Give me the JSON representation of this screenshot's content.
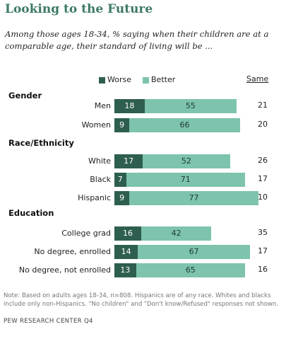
{
  "title": "Looking to the Future",
  "subtitle": "Among those ages 18-34, % saying when their children are at a comparable age, their standard of living will be ...",
  "legend": {
    "worse": "Worse",
    "better": "Better",
    "same_header": "Same"
  },
  "colors": {
    "worse": "#2e5e4f",
    "better": "#7dc3ad",
    "title": "#3d7a64"
  },
  "chart_data": {
    "type": "bar",
    "stacked": true,
    "orientation": "horizontal",
    "groups": [
      {
        "heading": "Gender",
        "rows": [
          {
            "label": "Men",
            "worse": 18,
            "better": 55,
            "same": 21
          },
          {
            "label": "Women",
            "worse": 9,
            "better": 66,
            "same": 20
          }
        ]
      },
      {
        "heading": "Race/Ethnicity",
        "rows": [
          {
            "label": "White",
            "worse": 17,
            "better": 52,
            "same": 26
          },
          {
            "label": "Black",
            "worse": 7,
            "better": 71,
            "same": 17
          },
          {
            "label": "Hispanic",
            "worse": 9,
            "better": 77,
            "same": 10
          }
        ]
      },
      {
        "heading": "Education",
        "rows": [
          {
            "label": "College grad",
            "worse": 16,
            "better": 42,
            "same": 35
          },
          {
            "label": "No degree, enrolled",
            "worse": 14,
            "better": 67,
            "same": 17
          },
          {
            "label": "No degree, not enrolled",
            "worse": 13,
            "better": 65,
            "same": 16
          }
        ]
      }
    ],
    "series": [
      {
        "name": "Worse"
      },
      {
        "name": "Better"
      }
    ]
  },
  "note": "Note: Based on adults ages 18-34, n=808. Hispanics are of any race. Whites and blacks include only non-Hispanics. \"No children\" and \"Don't know/Refused\" responses not shown.",
  "source": "PEW RESEARCH CENTER Q4"
}
